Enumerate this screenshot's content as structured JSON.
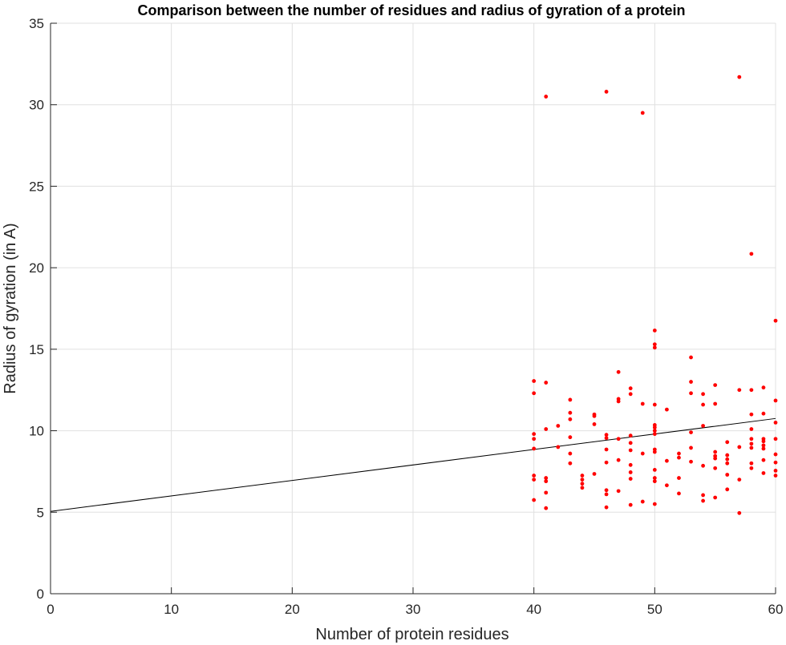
{
  "chart_data": {
    "type": "scatter",
    "title": "Comparison between the number of residues and radius of gyration of a protein",
    "xlabel": "Number of protein residues",
    "ylabel": "Radius of gyration (in A)",
    "xlim": [
      0,
      60
    ],
    "ylim": [
      0,
      35
    ],
    "xticks": [
      "0",
      "10",
      "20",
      "30",
      "40",
      "50",
      "60"
    ],
    "yticks": [
      "0",
      "5",
      "10",
      "15",
      "20",
      "25",
      "30",
      "35"
    ],
    "grid": true,
    "colors": {
      "points": "#ff0000",
      "fit_line": "#000000",
      "grid": "#e0e0e0",
      "axis": "#262626"
    },
    "fit_line": {
      "x": [
        0,
        60
      ],
      "y": [
        5.05,
        10.75
      ]
    },
    "points": [
      [
        40,
        13.05
      ],
      [
        40,
        12.3
      ],
      [
        40,
        9.8
      ],
      [
        40,
        9.5
      ],
      [
        40,
        8.9
      ],
      [
        40,
        7.25
      ],
      [
        40,
        7.0
      ],
      [
        40,
        5.75
      ],
      [
        41,
        30.5
      ],
      [
        41,
        12.95
      ],
      [
        41,
        10.1
      ],
      [
        41,
        7.1
      ],
      [
        41,
        6.9
      ],
      [
        41,
        6.2
      ],
      [
        41,
        5.25
      ],
      [
        42,
        10.3
      ],
      [
        42,
        9.0
      ],
      [
        43,
        11.9
      ],
      [
        43,
        11.1
      ],
      [
        43,
        10.7
      ],
      [
        43,
        9.6
      ],
      [
        43,
        8.6
      ],
      [
        43,
        8.0
      ],
      [
        44,
        7.25
      ],
      [
        44,
        7.0
      ],
      [
        44,
        6.75
      ],
      [
        44,
        6.5
      ],
      [
        45,
        11.0
      ],
      [
        45,
        10.9
      ],
      [
        45,
        10.4
      ],
      [
        45,
        7.35
      ],
      [
        46,
        30.8
      ],
      [
        46,
        9.75
      ],
      [
        46,
        9.55
      ],
      [
        46,
        8.85
      ],
      [
        46,
        8.05
      ],
      [
        46,
        6.35
      ],
      [
        46,
        6.1
      ],
      [
        46,
        5.3
      ],
      [
        47,
        13.6
      ],
      [
        47,
        11.95
      ],
      [
        47,
        11.8
      ],
      [
        47,
        9.5
      ],
      [
        47,
        8.2
      ],
      [
        47,
        6.3
      ],
      [
        48,
        12.6
      ],
      [
        48,
        12.25
      ],
      [
        48,
        9.7
      ],
      [
        48,
        9.25
      ],
      [
        48,
        8.8
      ],
      [
        48,
        7.9
      ],
      [
        48,
        7.45
      ],
      [
        48,
        7.05
      ],
      [
        48,
        5.45
      ],
      [
        49,
        29.5
      ],
      [
        49,
        11.65
      ],
      [
        49,
        8.6
      ],
      [
        49,
        5.65
      ],
      [
        50,
        16.15
      ],
      [
        50,
        15.3
      ],
      [
        50,
        15.1
      ],
      [
        50,
        11.6
      ],
      [
        50,
        10.35
      ],
      [
        50,
        10.2
      ],
      [
        50,
        10.0
      ],
      [
        50,
        9.8
      ],
      [
        50,
        8.85
      ],
      [
        50,
        8.7
      ],
      [
        50,
        7.6
      ],
      [
        50,
        7.1
      ],
      [
        50,
        6.9
      ],
      [
        50,
        5.5
      ],
      [
        51,
        11.3
      ],
      [
        51,
        8.15
      ],
      [
        51,
        6.65
      ],
      [
        52,
        8.6
      ],
      [
        52,
        8.35
      ],
      [
        52,
        7.1
      ],
      [
        52,
        6.15
      ],
      [
        53,
        14.5
      ],
      [
        53,
        13.0
      ],
      [
        53,
        12.3
      ],
      [
        53,
        9.9
      ],
      [
        53,
        8.95
      ],
      [
        53,
        8.1
      ],
      [
        54,
        12.25
      ],
      [
        54,
        11.6
      ],
      [
        54,
        10.3
      ],
      [
        54,
        7.85
      ],
      [
        54,
        6.05
      ],
      [
        54,
        5.7
      ],
      [
        55,
        12.8
      ],
      [
        55,
        11.65
      ],
      [
        55,
        8.7
      ],
      [
        55,
        8.45
      ],
      [
        55,
        8.3
      ],
      [
        55,
        7.7
      ],
      [
        55,
        5.9
      ],
      [
        56,
        9.3
      ],
      [
        56,
        8.5
      ],
      [
        56,
        8.25
      ],
      [
        56,
        8.0
      ],
      [
        56,
        7.3
      ],
      [
        56,
        6.4
      ],
      [
        57,
        31.7
      ],
      [
        57,
        12.5
      ],
      [
        57,
        9.0
      ],
      [
        57,
        7.0
      ],
      [
        57,
        4.95
      ],
      [
        58,
        20.85
      ],
      [
        58,
        12.5
      ],
      [
        58,
        11.0
      ],
      [
        58,
        10.1
      ],
      [
        58,
        9.5
      ],
      [
        58,
        9.2
      ],
      [
        58,
        8.95
      ],
      [
        58,
        8.0
      ],
      [
        58,
        7.7
      ],
      [
        59,
        12.65
      ],
      [
        59,
        11.05
      ],
      [
        59,
        9.5
      ],
      [
        59,
        9.35
      ],
      [
        59,
        9.1
      ],
      [
        59,
        8.9
      ],
      [
        59,
        8.2
      ],
      [
        59,
        7.4
      ],
      [
        60,
        16.75
      ],
      [
        60,
        11.85
      ],
      [
        60,
        10.5
      ],
      [
        60,
        9.5
      ],
      [
        60,
        8.55
      ],
      [
        60,
        8.05
      ],
      [
        60,
        7.55
      ],
      [
        60,
        7.25
      ]
    ]
  }
}
